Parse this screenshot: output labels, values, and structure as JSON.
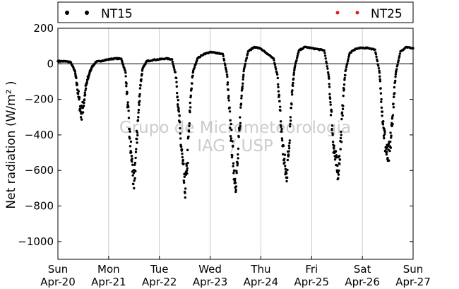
{
  "chart_data": {
    "type": "scatter",
    "ylabel": "Net radiation (W/m² )",
    "ylim": [
      -1100,
      200
    ],
    "yticks": [
      200,
      0,
      -200,
      -400,
      -600,
      -800,
      -1000
    ],
    "ytick_labels": [
      "200",
      "0",
      "−200",
      "−400",
      "−600",
      "−800",
      "−1000"
    ],
    "xlim": [
      "2014-04-20",
      "2014-04-27"
    ],
    "xticks": [
      {
        "day": "Sun",
        "date": "Apr-20"
      },
      {
        "day": "Mon",
        "date": "Apr-21"
      },
      {
        "day": "Tue",
        "date": "Apr-22"
      },
      {
        "day": "Wed",
        "date": "Apr-23"
      },
      {
        "day": "Thu",
        "date": "Apr-24"
      },
      {
        "day": "Fri",
        "date": "Apr-25"
      },
      {
        "day": "Sat",
        "date": "Apr-26"
      },
      {
        "day": "Sun",
        "date": "Apr-27"
      }
    ],
    "grid": "vertical",
    "legend_position": "top",
    "watermark": [
      "Grupo de Micrometeorologia",
      "IAG / USP"
    ],
    "series": [
      {
        "name": "NT15",
        "color": "#000000",
        "points": [
          [
            "2014-04-20 00:00",
            15
          ],
          [
            "2014-04-20 03:00",
            14
          ],
          [
            "2014-04-20 06:00",
            10
          ],
          [
            "2014-04-20 08:00",
            -40
          ],
          [
            "2014-04-20 09:00",
            -120
          ],
          [
            "2014-04-20 10:00",
            -200
          ],
          [
            "2014-04-20 11:00",
            -280
          ],
          [
            "2014-04-20 12:00",
            -240
          ],
          [
            "2014-04-20 13:00",
            -150
          ],
          [
            "2014-04-20 14:00",
            -90
          ],
          [
            "2014-04-20 15:00",
            -50
          ],
          [
            "2014-04-20 16:00",
            -20
          ],
          [
            "2014-04-20 18:00",
            10
          ],
          [
            "2014-04-20 21:00",
            18
          ],
          [
            "2014-04-21 00:00",
            25
          ],
          [
            "2014-04-21 03:00",
            30
          ],
          [
            "2014-04-21 06:00",
            28
          ],
          [
            "2014-04-21 08:00",
            -50
          ],
          [
            "2014-04-21 09:00",
            -230
          ],
          [
            "2014-04-21 10:00",
            -420
          ],
          [
            "2014-04-21 11:00",
            -550
          ],
          [
            "2014-04-21 12:00",
            -700
          ],
          [
            "2014-04-21 13:00",
            -480
          ],
          [
            "2014-04-21 14:00",
            -300
          ],
          [
            "2014-04-21 15:00",
            -120
          ],
          [
            "2014-04-21 16:00",
            -30
          ],
          [
            "2014-04-21 18:00",
            15
          ],
          [
            "2014-04-21 21:00",
            22
          ],
          [
            "2014-04-22 00:00",
            25
          ],
          [
            "2014-04-22 03:00",
            30
          ],
          [
            "2014-04-22 06:00",
            25
          ],
          [
            "2014-04-22 08:00",
            -80
          ],
          [
            "2014-04-22 09:00",
            -260
          ],
          [
            "2014-04-22 10:00",
            -420
          ],
          [
            "2014-04-22 11:00",
            -560
          ],
          [
            "2014-04-22 12:00",
            -720
          ],
          [
            "2014-04-22 13:00",
            -600
          ],
          [
            "2014-04-22 14:00",
            -380
          ],
          [
            "2014-04-22 15:00",
            -150
          ],
          [
            "2014-04-22 16:00",
            -40
          ],
          [
            "2014-04-22 18:00",
            30
          ],
          [
            "2014-04-22 21:00",
            55
          ],
          [
            "2014-04-23 00:00",
            65
          ],
          [
            "2014-04-23 03:00",
            62
          ],
          [
            "2014-04-23 06:00",
            55
          ],
          [
            "2014-04-23 08:00",
            -60
          ],
          [
            "2014-04-23 09:00",
            -250
          ],
          [
            "2014-04-23 10:00",
            -420
          ],
          [
            "2014-04-23 11:00",
            -560
          ],
          [
            "2014-04-23 12:00",
            -670
          ],
          [
            "2014-04-23 13:00",
            -560
          ],
          [
            "2014-04-23 14:00",
            -360
          ],
          [
            "2014-04-23 15:00",
            -150
          ],
          [
            "2014-04-23 16:00",
            -30
          ],
          [
            "2014-04-23 18:00",
            70
          ],
          [
            "2014-04-23 21:00",
            95
          ],
          [
            "2014-04-24 00:00",
            85
          ],
          [
            "2014-04-24 03:00",
            55
          ],
          [
            "2014-04-24 06:00",
            30
          ],
          [
            "2014-04-24 08:00",
            -80
          ],
          [
            "2014-04-24 09:00",
            -260
          ],
          [
            "2014-04-24 10:00",
            -420
          ],
          [
            "2014-04-24 11:00",
            -540
          ],
          [
            "2014-04-24 12:00",
            -640
          ],
          [
            "2014-04-24 13:00",
            -520
          ],
          [
            "2014-04-24 14:00",
            -300
          ],
          [
            "2014-04-24 15:00",
            -120
          ],
          [
            "2014-04-24 16:00",
            -20
          ],
          [
            "2014-04-24 18:00",
            75
          ],
          [
            "2014-04-24 21:00",
            95
          ],
          [
            "2014-04-25 00:00",
            88
          ],
          [
            "2014-04-25 03:00",
            82
          ],
          [
            "2014-04-25 06:00",
            75
          ],
          [
            "2014-04-25 08:00",
            -60
          ],
          [
            "2014-04-25 09:00",
            -230
          ],
          [
            "2014-04-25 10:00",
            -400
          ],
          [
            "2014-04-25 11:00",
            -520
          ],
          [
            "2014-04-25 12:00",
            -600
          ],
          [
            "2014-04-25 13:00",
            -560
          ],
          [
            "2014-04-25 14:00",
            -400
          ],
          [
            "2014-04-25 15:00",
            -180
          ],
          [
            "2014-04-25 16:00",
            -40
          ],
          [
            "2014-04-25 18:00",
            60
          ],
          [
            "2014-04-25 21:00",
            85
          ],
          [
            "2014-04-26 00:00",
            90
          ],
          [
            "2014-04-26 03:00",
            88
          ],
          [
            "2014-04-26 06:00",
            80
          ],
          [
            "2014-04-26 08:00",
            -40
          ],
          [
            "2014-04-26 09:00",
            -200
          ],
          [
            "2014-04-26 10:00",
            -360
          ],
          [
            "2014-04-26 11:00",
            -470
          ],
          [
            "2014-04-26 12:00",
            -530
          ],
          [
            "2014-04-26 13:00",
            -490
          ],
          [
            "2014-04-26 14:00",
            -350
          ],
          [
            "2014-04-26 15:00",
            -170
          ],
          [
            "2014-04-26 16:00",
            -40
          ],
          [
            "2014-04-26 18:00",
            70
          ],
          [
            "2014-04-26 21:00",
            95
          ],
          [
            "2014-04-27 00:00",
            88
          ]
        ]
      },
      {
        "name": "NT25",
        "color": "#e31a1c",
        "points": []
      }
    ]
  }
}
